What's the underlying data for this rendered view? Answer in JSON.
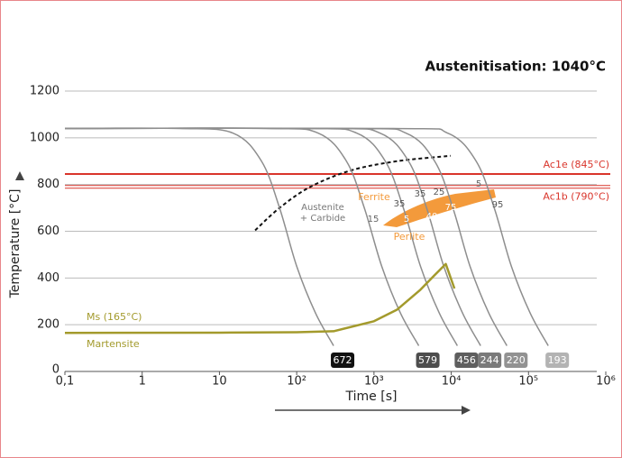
{
  "chart_data": {
    "type": "line",
    "title": "Austenitisation: 1040°C",
    "xlabel": "Time [s]",
    "ylabel": "Temperature [°C]",
    "xscale": "log",
    "xlim": [
      0.1,
      1000000
    ],
    "ylim": [
      0,
      1200
    ],
    "xticks": [
      {
        "value": 0.1,
        "label": "0,1"
      },
      1,
      10,
      {
        "value": 100,
        "label": "10²"
      },
      {
        "value": 1000,
        "label": "10³"
      },
      {
        "value": 10000,
        "label": "10⁴"
      },
      {
        "value": 100000,
        "label": "10⁵"
      },
      {
        "value": 1000000,
        "label": "10⁶"
      }
    ],
    "yticks": [
      0,
      200,
      400,
      600,
      800,
      1000,
      1200
    ],
    "grid": true,
    "curve_color": "#8e8e8e",
    "cooling_curves": [
      {
        "hardness": 672,
        "box_color": "#111111",
        "x": [
          0.1,
          3,
          15,
          35,
          60,
          100,
          175,
          300
        ],
        "values": [
          1040,
          1040,
          1020,
          900,
          700,
          450,
          250,
          110
        ]
      },
      {
        "hardness": 579,
        "box_color": "#4d4d4d",
        "x": [
          0.1,
          40,
          190,
          440,
          750,
          1260,
          2200,
          3800
        ],
        "values": [
          1040,
          1040,
          1020,
          900,
          700,
          450,
          250,
          110
        ]
      },
      {
        "hardness": 456,
        "box_color": "#5e5e5e",
        "x": [
          0.1,
          120,
          600,
          1400,
          2400,
          4000,
          7000,
          12000
        ],
        "values": [
          1040,
          1040,
          1020,
          900,
          700,
          450,
          250,
          110
        ]
      },
      {
        "hardness": 244,
        "box_color": "#7a7a7a",
        "x": [
          0.1,
          240,
          1200,
          2800,
          4800,
          8000,
          14000,
          24000
        ],
        "values": [
          1040,
          1040,
          1020,
          900,
          700,
          450,
          250,
          110
        ]
      },
      {
        "hardness": 220,
        "box_color": "#929292",
        "x": [
          0.1,
          520,
          2600,
          6100,
          10500,
          17500,
          30600,
          52500
        ],
        "values": [
          1040,
          1040,
          1020,
          900,
          700,
          450,
          250,
          110
        ]
      },
      {
        "hardness": 193,
        "box_color": "#b3b3b3",
        "x": [
          0.1,
          1800,
          9000,
          21000,
          36000,
          60000,
          105000,
          180000
        ],
        "values": [
          1040,
          1040,
          1020,
          900,
          700,
          450,
          250,
          110
        ]
      }
    ],
    "ms_line": {
      "label": "Ms (165°C)",
      "region_label": "Martensite",
      "color": "#a39a2c",
      "x": [
        0.1,
        10,
        100,
        300,
        1000,
        2000,
        4000,
        6000,
        8500,
        11000
      ],
      "values": [
        165,
        166,
        168,
        172,
        215,
        265,
        350,
        410,
        460,
        355
      ]
    },
    "reference_lines": {
      "color": "#d9352b",
      "lines": [
        {
          "label": "Ac1e (845°C)",
          "value": 845
        },
        {
          "label": "Ac1b (790°C)",
          "value": 790
        }
      ]
    },
    "boundary": {
      "label_lines": [
        "Austenite",
        "+ Carbide"
      ],
      "x": [
        29,
        60,
        150,
        500,
        2000,
        9800
      ],
      "values": [
        604,
        700,
        790,
        860,
        900,
        923
      ]
    },
    "transformation": {
      "labels": [
        "Ferrite",
        "Perlite"
      ],
      "color": "#f39a3b",
      "phase_percentages": [
        15,
        35,
        5,
        35,
        25,
        40,
        75,
        5,
        95
      ]
    }
  }
}
